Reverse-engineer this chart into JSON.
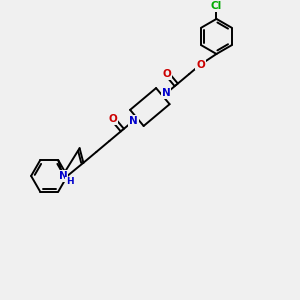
{
  "background_color": "#f0f0f0",
  "bond_color": "#000000",
  "bond_width": 1.4,
  "atom_colors": {
    "N": "#0000cc",
    "O": "#cc0000",
    "Cl": "#00aa00",
    "H": "#0000cc",
    "C": "#000000"
  }
}
